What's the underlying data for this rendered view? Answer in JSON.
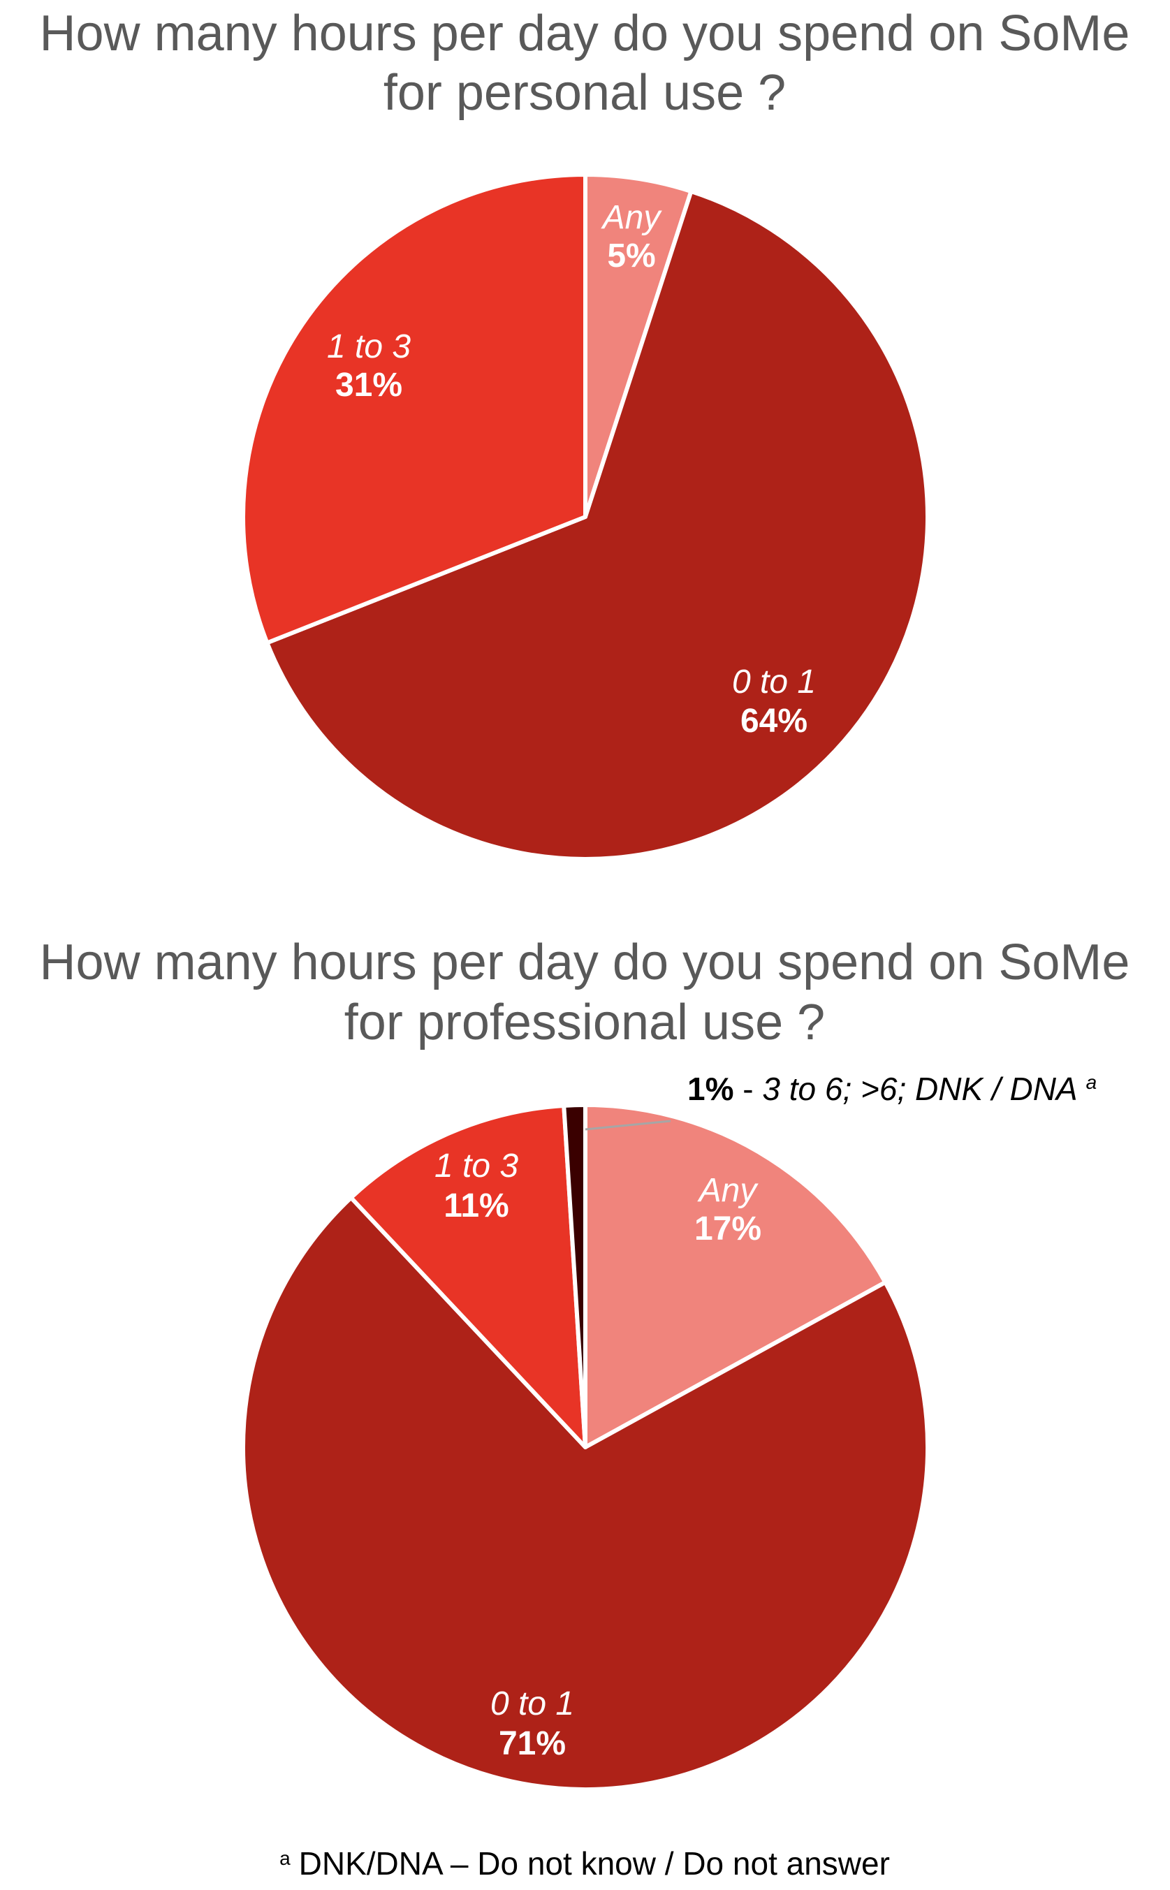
{
  "chart_data": [
    {
      "type": "pie",
      "title": "How many hours per day do you spend on SoMe for personal use ?",
      "title_lines": [
        "How many hours per day do you spend on SoMe",
        "for personal use ?"
      ],
      "slices": [
        {
          "category": "Any",
          "value": 5,
          "value_label": "5%",
          "color": "#f0847c"
        },
        {
          "category": "0 to 1",
          "value": 64,
          "value_label": "64%",
          "color": "#ae2218"
        },
        {
          "category": "1 to 3",
          "value": 31,
          "value_label": "31%",
          "color": "#e83426"
        }
      ]
    },
    {
      "type": "pie",
      "title": "How many hours per day do you spend on SoMe for professional use ?",
      "title_lines": [
        "How many hours per day do you spend on SoMe",
        "for professional use ?"
      ],
      "slices": [
        {
          "category": "Any",
          "value": 17,
          "value_label": "17%",
          "color": "#f0847c"
        },
        {
          "category": "0 to 1",
          "value": 71,
          "value_label": "71%",
          "color": "#ae2218"
        },
        {
          "category": "1 to 3",
          "value": 11,
          "value_label": "11%",
          "color": "#e83426"
        },
        {
          "category": "3 to 6; >6; DNK / DNA",
          "value": 1,
          "value_label": "1%",
          "color": "#3a0000"
        }
      ],
      "callout": {
        "value": "1%",
        "separator": " - ",
        "text": "3 to 6; >6; DNK / DNA",
        "marker": "a"
      }
    }
  ],
  "footnote": {
    "marker": "a",
    "text": "DNK/DNA – Do not know / Do not answer"
  }
}
